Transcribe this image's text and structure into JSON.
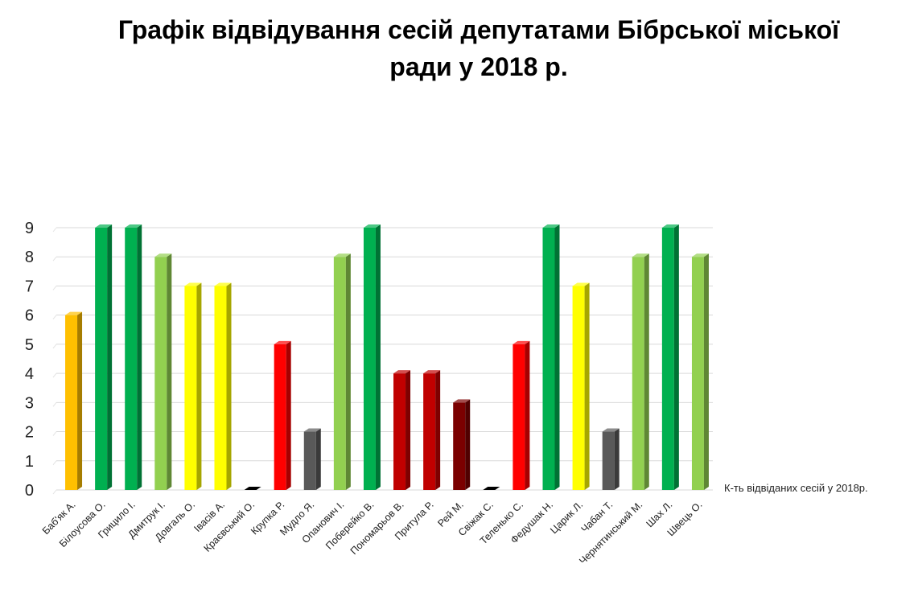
{
  "chart_data": {
    "type": "bar",
    "title": "Графік відвідування сесій депутатами Бібрської міської ради у 2018 р.",
    "xlabel": "",
    "ylabel": "",
    "ylim": [
      0,
      9
    ],
    "yticks": [
      0,
      1,
      2,
      3,
      4,
      5,
      6,
      7,
      8,
      9
    ],
    "grid": true,
    "legend_position": "right",
    "categories": [
      "Баб'як А.",
      "Білоусова О.",
      "Грицило І.",
      "Дмитрук І.",
      "Довгаль О.",
      "Івасів А.",
      "Краєвський О.",
      "Крупка Р.",
      "Мудло Я.",
      "Опанович І.",
      "Поберейко В.",
      "Пономарьов В.",
      "Притула Р.",
      "Рей М.",
      "Свіжак С.",
      "Теленько С.",
      "Федушак Н.",
      "Царик Л.",
      "Чабан Т.",
      "Чернятинський М.",
      "Шах Л.",
      "Швець О."
    ],
    "series": [
      {
        "name": "К-ть відвіданих сесій у 2018р.",
        "values": [
          6,
          9,
          9,
          8,
          7,
          7,
          0,
          5,
          2,
          8,
          9,
          4,
          4,
          3,
          0,
          5,
          9,
          7,
          2,
          8,
          9,
          8
        ]
      }
    ],
    "bar_colors": [
      "#FFC000",
      "#00B050",
      "#00B050",
      "#92D050",
      "#FFFF00",
      "#FFFF00",
      "#000000",
      "#FF0000",
      "#595959",
      "#92D050",
      "#00B050",
      "#C00000",
      "#C00000",
      "#7B0000",
      "#000000",
      "#FF0000",
      "#00B050",
      "#FFFF00",
      "#595959",
      "#92D050",
      "#00B050",
      "#92D050"
    ]
  }
}
